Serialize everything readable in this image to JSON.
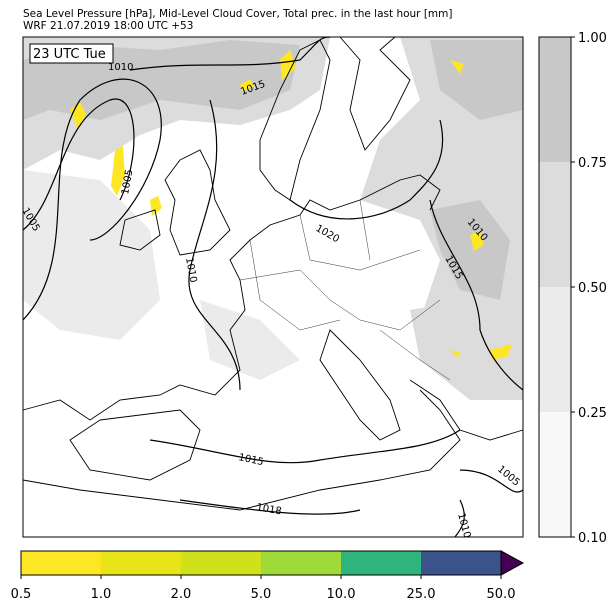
{
  "header": {
    "line1": "Sea Level Pressure [hPa], Mid-Level Cloud Cover, Total prec. in the last hour [mm]",
    "line2": "WRF 21.07.2019 18:00 UTC +53"
  },
  "map": {
    "time_label": "23 UTC Tue",
    "contour_labels": [
      "1010",
      "1015",
      "1005",
      "1005",
      "1010",
      "1020",
      "1010",
      "1015",
      "1015",
      "1005",
      "1018",
      "1010"
    ]
  },
  "cloud_colorbar": {
    "levels": [
      {
        "value": 0.1,
        "label": "0.10"
      },
      {
        "value": 0.25,
        "label": "0.25"
      },
      {
        "value": 0.5,
        "label": "0.50"
      },
      {
        "value": 0.75,
        "label": "0.75"
      },
      {
        "value": 1,
        "label": "1.00"
      }
    ],
    "colors": [
      "#f8f8f8",
      "#ebebeb",
      "#dcdcdc",
      "#c8c8c8"
    ]
  },
  "precip_colorbar": {
    "levels": [
      0.5,
      {
        "value": 1,
        "label": "1.0"
      },
      {
        "value": 2,
        "label": "2.0"
      },
      {
        "value": 5,
        "label": "5.0"
      },
      {
        "value": 10,
        "label": "10.0"
      },
      {
        "value": 25,
        "label": "25.0"
      },
      {
        "value": 50,
        "label": "50.0"
      }
    ],
    "colors": [
      "#fde725",
      "#e8e419",
      "#d0e11c",
      "#a0da39",
      "#2fb47c",
      "#3b528b"
    ],
    "extend_color": "#440154"
  }
}
